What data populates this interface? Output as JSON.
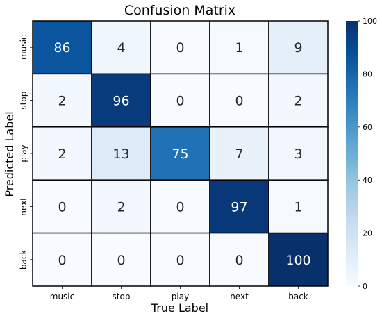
{
  "chart_data": {
    "type": "heatmap",
    "title": "Confusion Matrix",
    "xlabel": "True Label",
    "ylabel": "Predicted Label",
    "x_categories": [
      "music",
      "stop",
      "play",
      "next",
      "back"
    ],
    "y_categories": [
      "music",
      "stop",
      "play",
      "next",
      "back"
    ],
    "values": [
      [
        86,
        4,
        0,
        1,
        9
      ],
      [
        2,
        96,
        0,
        0,
        2
      ],
      [
        2,
        13,
        75,
        7,
        3
      ],
      [
        0,
        2,
        0,
        97,
        1
      ],
      [
        0,
        0,
        0,
        0,
        100
      ]
    ],
    "colorbar": {
      "range": [
        0,
        100
      ],
      "ticks": [
        "0",
        "20",
        "40",
        "60",
        "80",
        "100"
      ],
      "colormap": "Blues"
    }
  }
}
